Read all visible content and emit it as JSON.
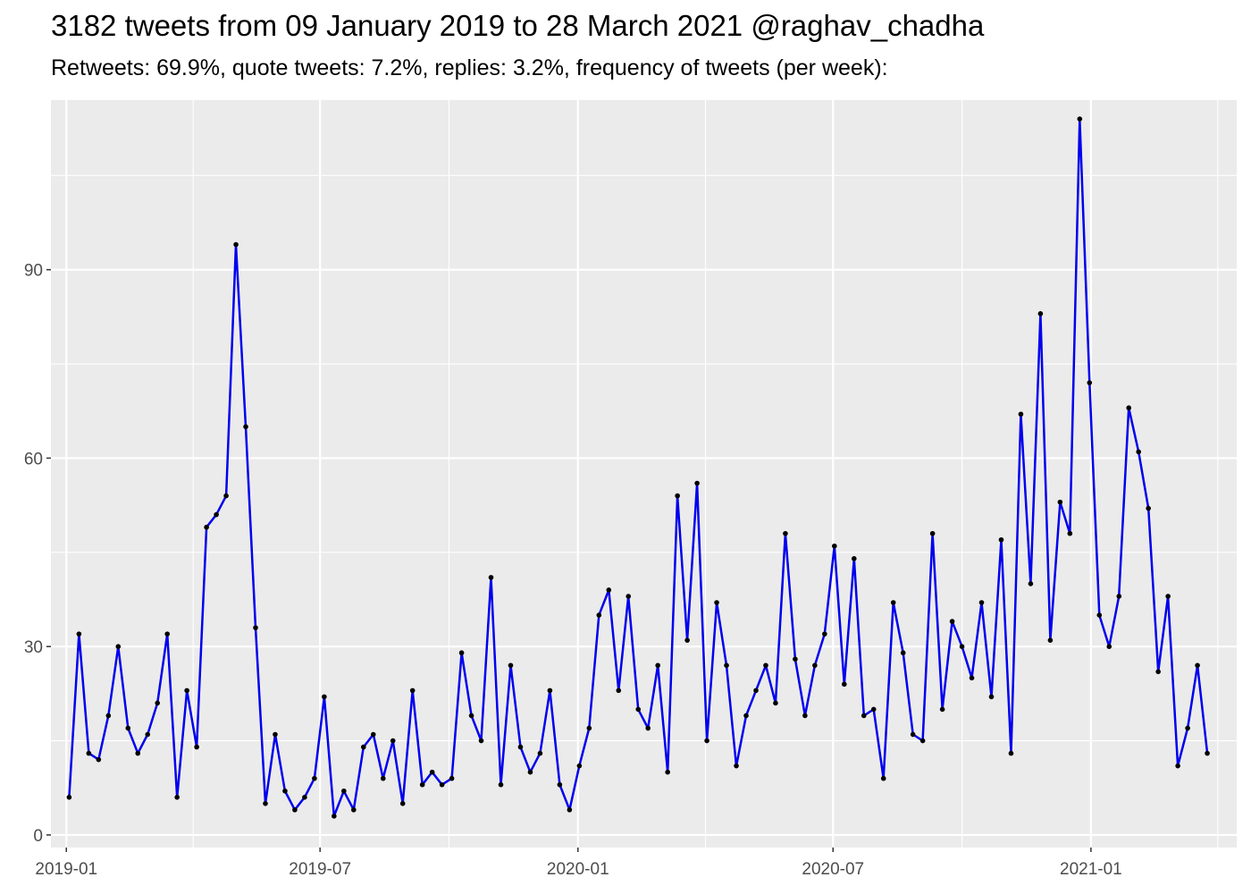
{
  "title": "3182 tweets from 09 January 2019 to 28 March 2021 @raghav_chadha",
  "subtitle": "Retweets: 69.9%, quote tweets: 7.2%, replies: 3.2%, frequency of tweets (per week):",
  "chart_data": {
    "type": "line",
    "xlabel": "",
    "ylabel": "",
    "x_axis": {
      "type": "date",
      "range": [
        "2018-12-21",
        "2021-04-15"
      ],
      "ticks": [
        "2019-01-01",
        "2019-07-01",
        "2020-01-01",
        "2020-07-01",
        "2021-01-01"
      ],
      "tick_labels": [
        "2019-01",
        "2019-07",
        "2020-01",
        "2020-07",
        "2021-01"
      ]
    },
    "y_axis": {
      "range": [
        -2,
        117
      ],
      "ticks": [
        0,
        30,
        60,
        90
      ],
      "tick_labels": [
        "0",
        "30",
        "60",
        "90"
      ]
    },
    "grid": true,
    "legend": "none",
    "colors": {
      "line": "#0000ee",
      "points": "#000000",
      "panel": "#ebebeb",
      "grid": "#ffffff"
    },
    "series": [
      {
        "x": [
          "2019-01-03",
          "2019-01-10",
          "2019-01-17",
          "2019-01-24",
          "2019-01-31",
          "2019-02-07",
          "2019-02-14",
          "2019-02-21",
          "2019-02-28",
          "2019-03-07",
          "2019-03-14",
          "2019-03-21",
          "2019-03-28",
          "2019-04-04",
          "2019-04-11",
          "2019-04-18",
          "2019-04-25",
          "2019-05-02",
          "2019-05-09",
          "2019-05-16",
          "2019-05-23",
          "2019-05-30",
          "2019-06-06",
          "2019-06-13",
          "2019-06-20",
          "2019-06-27",
          "2019-07-04",
          "2019-07-11",
          "2019-07-18",
          "2019-07-25",
          "2019-08-01",
          "2019-08-08",
          "2019-08-15",
          "2019-08-22",
          "2019-08-29",
          "2019-09-05",
          "2019-09-12",
          "2019-09-19",
          "2019-09-26",
          "2019-10-03",
          "2019-10-10",
          "2019-10-17",
          "2019-10-24",
          "2019-10-31",
          "2019-11-07",
          "2019-11-14",
          "2019-11-21",
          "2019-11-28",
          "2019-12-05",
          "2019-12-12",
          "2019-12-19",
          "2019-12-26",
          "2020-01-02",
          "2020-01-09",
          "2020-01-16",
          "2020-01-23",
          "2020-01-30",
          "2020-02-06",
          "2020-02-13",
          "2020-02-20",
          "2020-02-27",
          "2020-03-05",
          "2020-03-12",
          "2020-03-19",
          "2020-03-26",
          "2020-04-02",
          "2020-04-09",
          "2020-04-16",
          "2020-04-23",
          "2020-04-30",
          "2020-05-07",
          "2020-05-14",
          "2020-05-21",
          "2020-05-28",
          "2020-06-04",
          "2020-06-11",
          "2020-06-18",
          "2020-06-25",
          "2020-07-02",
          "2020-07-09",
          "2020-07-16",
          "2020-07-23",
          "2020-07-30",
          "2020-08-06",
          "2020-08-13",
          "2020-08-20",
          "2020-08-27",
          "2020-09-03",
          "2020-09-10",
          "2020-09-17",
          "2020-09-24",
          "2020-10-01",
          "2020-10-08",
          "2020-10-15",
          "2020-10-22",
          "2020-10-29",
          "2020-11-05",
          "2020-11-12",
          "2020-11-19",
          "2020-11-26",
          "2020-12-03",
          "2020-12-10",
          "2020-12-17",
          "2020-12-24",
          "2020-12-31",
          "2021-01-07",
          "2021-01-14",
          "2021-01-21",
          "2021-01-28",
          "2021-02-04",
          "2021-02-11",
          "2021-02-18",
          "2021-02-25",
          "2021-03-04",
          "2021-03-11",
          "2021-03-18",
          "2021-03-25"
        ],
        "y": [
          6,
          32,
          13,
          12,
          19,
          30,
          17,
          13,
          16,
          21,
          32,
          6,
          23,
          14,
          49,
          51,
          54,
          94,
          65,
          33,
          5,
          16,
          7,
          4,
          6,
          9,
          22,
          3,
          7,
          4,
          14,
          16,
          9,
          15,
          5,
          23,
          8,
          10,
          8,
          9,
          29,
          19,
          15,
          41,
          8,
          27,
          14,
          10,
          13,
          23,
          8,
          4,
          11,
          17,
          35,
          39,
          23,
          38,
          20,
          17,
          27,
          10,
          54,
          31,
          56,
          15,
          37,
          27,
          11,
          19,
          23,
          27,
          21,
          48,
          28,
          19,
          27,
          32,
          46,
          24,
          44,
          19,
          20,
          9,
          37,
          29,
          16,
          15,
          48,
          20,
          34,
          30,
          25,
          37,
          22,
          47,
          13,
          67,
          40,
          83,
          31,
          53,
          48,
          114,
          72,
          35,
          30,
          38,
          68,
          61,
          52,
          26,
          38,
          11,
          17,
          27,
          13
        ]
      }
    ]
  }
}
